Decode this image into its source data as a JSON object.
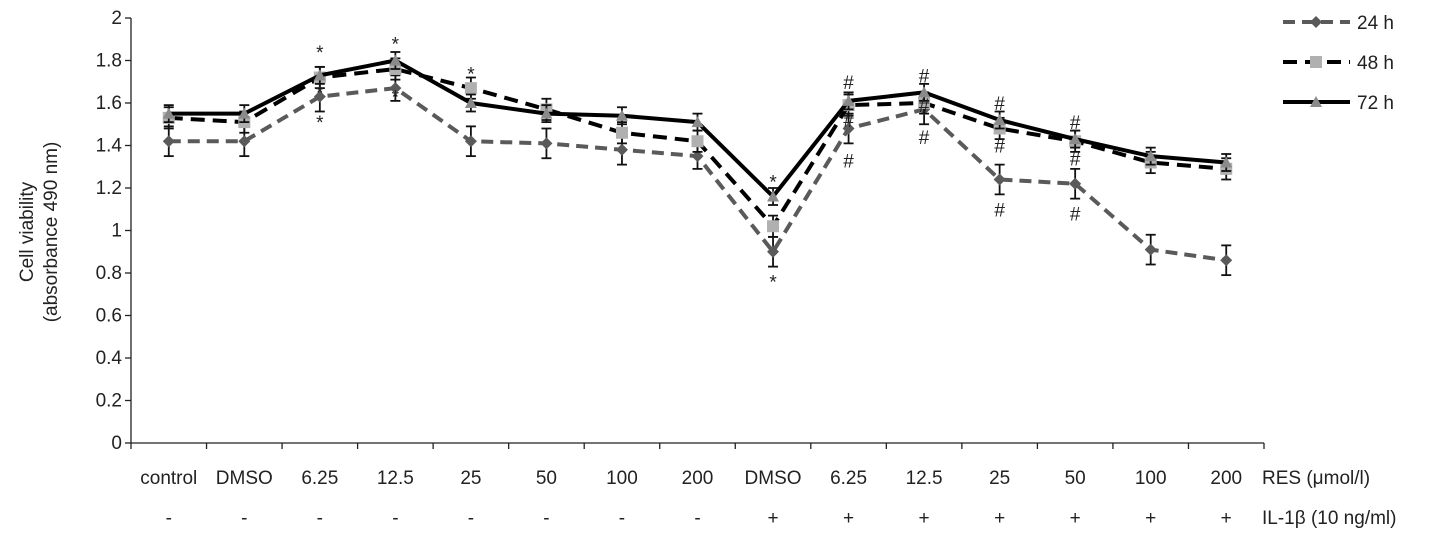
{
  "chart_data": {
    "type": "line",
    "ylabel_line1": "Cell viability",
    "ylabel_line2": "(absorbance 490 nm)",
    "ylim": [
      0,
      2
    ],
    "yticks": [
      "0",
      "0.2",
      "0.4",
      "0.6",
      "0.8",
      "1",
      "1.2",
      "1.4",
      "1.6",
      "1.8",
      "2"
    ],
    "categories": [
      "control",
      "DMSO",
      "6.25",
      "12.5",
      "25",
      "50",
      "100",
      "200",
      "DMSO",
      "6.25",
      "12.5",
      "25",
      "50",
      "100",
      "200"
    ],
    "row_label_1": "RES (μmol/l)",
    "row2": [
      "-",
      "-",
      "-",
      "-",
      "-",
      "-",
      "-",
      "-",
      "+",
      "+",
      "+",
      "+",
      "+",
      "+",
      "+"
    ],
    "row_label_2": "IL-1β (10 ng/ml)",
    "legend_position": "top-right",
    "series": [
      {
        "name": "24 h",
        "color": "#5a5a5a",
        "dash": "12,7",
        "marker": "diamond",
        "values": [
          1.42,
          1.42,
          1.63,
          1.67,
          1.42,
          1.41,
          1.38,
          1.35,
          0.9,
          1.48,
          1.57,
          1.24,
          1.22,
          0.91,
          0.86
        ],
        "errors": [
          0.07,
          0.07,
          0.07,
          0.06,
          0.07,
          0.07,
          0.07,
          0.06,
          0.07,
          0.07,
          0.07,
          0.07,
          0.07,
          0.07,
          0.07
        ]
      },
      {
        "name": "48 h",
        "color": "#000000",
        "dash": "14,8",
        "marker": "square",
        "values": [
          1.53,
          1.51,
          1.72,
          1.76,
          1.67,
          1.57,
          1.46,
          1.42,
          1.02,
          1.59,
          1.6,
          1.48,
          1.42,
          1.32,
          1.29
        ],
        "errors": [
          0.05,
          0.05,
          0.05,
          0.05,
          0.05,
          0.05,
          0.05,
          0.05,
          0.05,
          0.05,
          0.05,
          0.05,
          0.05,
          0.05,
          0.05
        ]
      },
      {
        "name": "72 h",
        "color": "#000000",
        "dash": "",
        "marker": "triangle",
        "values": [
          1.55,
          1.55,
          1.73,
          1.8,
          1.6,
          1.55,
          1.54,
          1.51,
          1.16,
          1.61,
          1.65,
          1.52,
          1.43,
          1.35,
          1.32
        ],
        "errors": [
          0.04,
          0.04,
          0.04,
          0.04,
          0.04,
          0.04,
          0.04,
          0.04,
          0.04,
          0.04,
          0.04,
          0.04,
          0.04,
          0.04,
          0.04
        ]
      }
    ],
    "annotations": [
      {
        "text": "*",
        "cat": 2,
        "y": 1.84
      },
      {
        "text": "*",
        "cat": 2,
        "y": 1.65
      },
      {
        "text": "*",
        "cat": 2,
        "y": 1.51
      },
      {
        "text": "*",
        "cat": 3,
        "y": 1.88
      },
      {
        "text": "*",
        "cat": 3,
        "y": 1.63
      },
      {
        "text": "*",
        "cat": 4,
        "y": 1.74
      },
      {
        "text": "*",
        "cat": 8,
        "y": 1.23
      },
      {
        "text": "*",
        "cat": 8,
        "y": 0.76
      },
      {
        "text": "#",
        "cat": 9,
        "y": 1.7
      },
      {
        "text": "#",
        "cat": 9,
        "y": 1.52
      },
      {
        "text": "#",
        "cat": 9,
        "y": 1.33
      },
      {
        "text": "#",
        "cat": 10,
        "y": 1.73
      },
      {
        "text": "#",
        "cat": 10,
        "y": 1.59
      },
      {
        "text": "#",
        "cat": 10,
        "y": 1.44
      },
      {
        "text": "#",
        "cat": 11,
        "y": 1.6
      },
      {
        "text": "#",
        "cat": 11,
        "y": 1.4
      },
      {
        "text": "#",
        "cat": 11,
        "y": 1.1
      },
      {
        "text": "#",
        "cat": 12,
        "y": 1.51
      },
      {
        "text": "#",
        "cat": 12,
        "y": 1.34
      },
      {
        "text": "#",
        "cat": 12,
        "y": 1.08
      }
    ]
  }
}
